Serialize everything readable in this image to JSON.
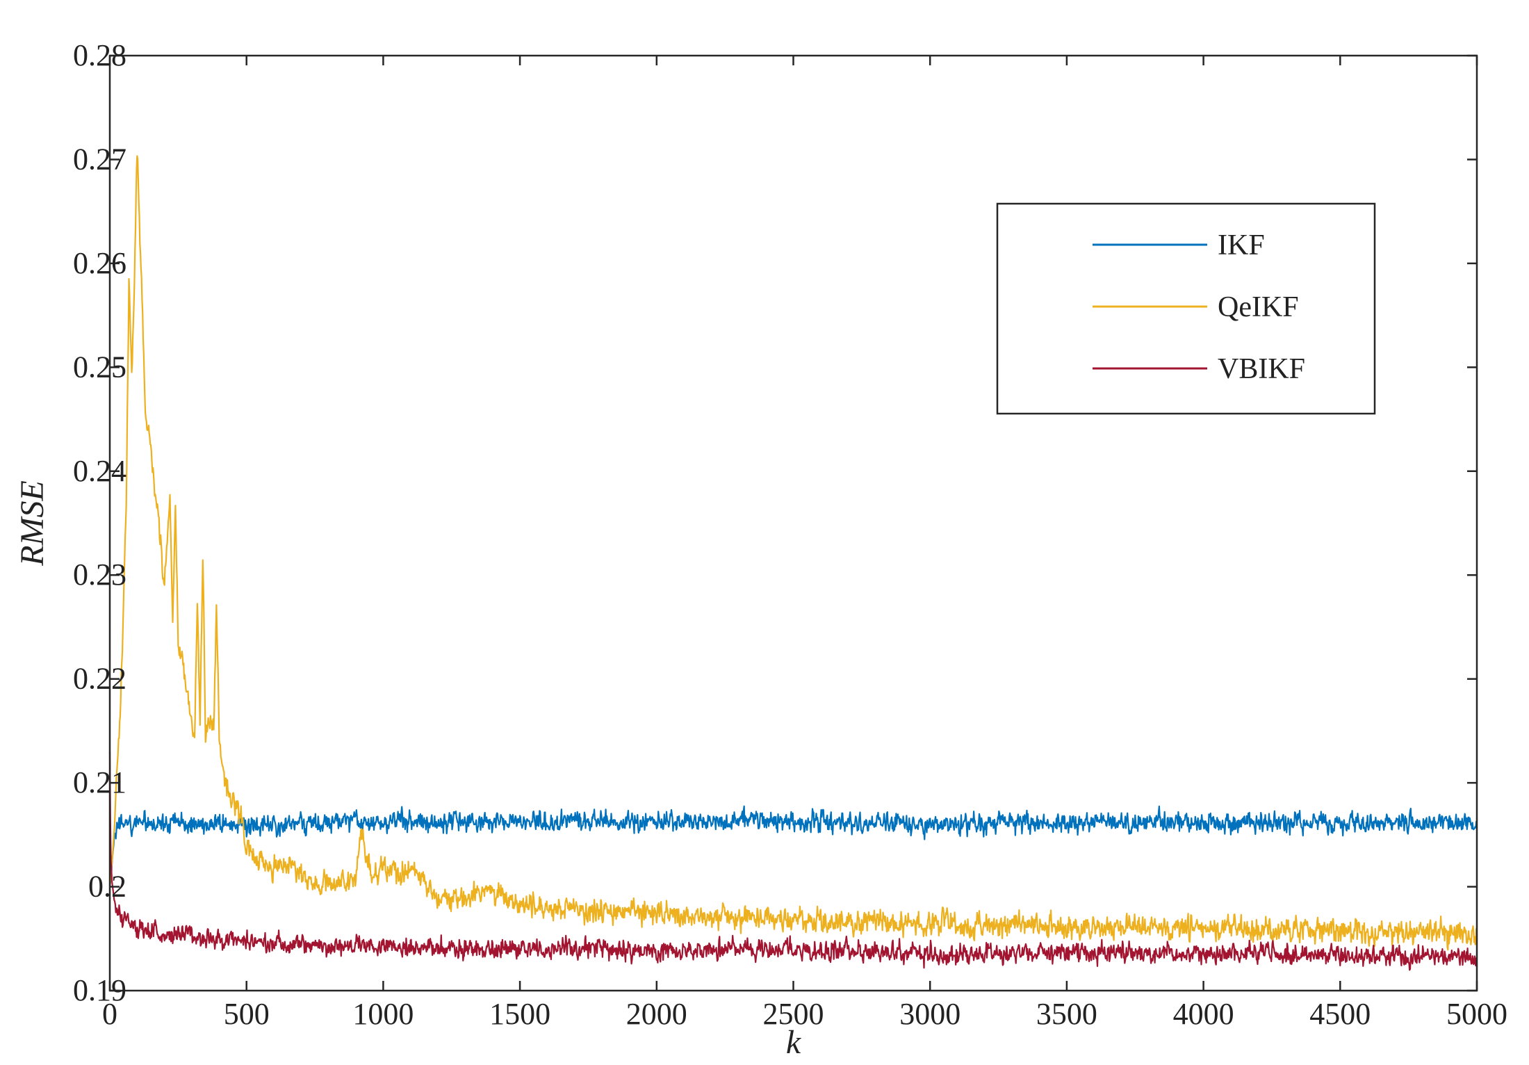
{
  "chart_data": {
    "type": "line",
    "title": "",
    "xlabel": "k",
    "ylabel": "RMSE",
    "xlim": [
      0,
      5000
    ],
    "ylim": [
      0.19,
      0.28
    ],
    "xticks": [
      0,
      500,
      1000,
      1500,
      2000,
      2500,
      3000,
      3500,
      4000,
      4500,
      5000
    ],
    "xtick_labels": [
      "0",
      "500",
      "1000",
      "1500",
      "2000",
      "2500",
      "3000",
      "3500",
      "4000",
      "4500",
      "5000"
    ],
    "yticks": [
      0.19,
      0.2,
      0.21,
      0.22,
      0.23,
      0.24,
      0.25,
      0.26,
      0.27,
      0.28
    ],
    "ytick_labels": [
      "0.19",
      "0.2",
      "0.21",
      "0.22",
      "0.23",
      "0.24",
      "0.25",
      "0.26",
      "0.27",
      "0.28"
    ],
    "grid": false,
    "legend_position": "top-right",
    "series": [
      {
        "name": "IKF",
        "color": "#0072BD",
        "noise": 0.0007,
        "x": [
          0,
          5,
          10,
          20,
          40,
          60,
          100,
          200,
          400,
          600,
          800,
          920,
          1000,
          1500,
          2000,
          2500,
          3000,
          3500,
          4000,
          4500,
          5000
        ],
        "y": [
          0.2,
          0.201,
          0.203,
          0.2055,
          0.206,
          0.206,
          0.2062,
          0.2062,
          0.206,
          0.2058,
          0.2062,
          0.2064,
          0.2062,
          0.2062,
          0.2062,
          0.2063,
          0.206,
          0.2062,
          0.2062,
          0.2062,
          0.2062
        ]
      },
      {
        "name": "QeIKF",
        "color": "#EDB120",
        "noise": 0.0008,
        "x": [
          0,
          10,
          20,
          40,
          60,
          70,
          80,
          90,
          100,
          110,
          120,
          130,
          140,
          150,
          160,
          180,
          200,
          220,
          230,
          240,
          250,
          260,
          280,
          300,
          310,
          320,
          330,
          340,
          350,
          360,
          380,
          390,
          400,
          420,
          450,
          480,
          500,
          550,
          600,
          650,
          700,
          750,
          800,
          850,
          900,
          920,
          950,
          1000,
          1050,
          1100,
          1150,
          1200,
          1250,
          1300,
          1400,
          1500,
          1600,
          1800,
          2000,
          2200,
          2500,
          2800,
          3000,
          3500,
          4000,
          4500,
          5000
        ],
        "y": [
          0.2,
          0.203,
          0.207,
          0.218,
          0.237,
          0.258,
          0.249,
          0.258,
          0.271,
          0.262,
          0.255,
          0.246,
          0.244,
          0.242,
          0.239,
          0.235,
          0.229,
          0.238,
          0.226,
          0.237,
          0.223,
          0.2225,
          0.219,
          0.2155,
          0.2155,
          0.228,
          0.2155,
          0.232,
          0.2145,
          0.2155,
          0.215,
          0.227,
          0.214,
          0.2105,
          0.2085,
          0.2065,
          0.2045,
          0.2025,
          0.2015,
          0.2022,
          0.2015,
          0.2005,
          0.2,
          0.2005,
          0.2006,
          0.206,
          0.2012,
          0.2018,
          0.201,
          0.202,
          0.2008,
          0.199,
          0.1985,
          0.199,
          0.1995,
          0.1982,
          0.1978,
          0.1976,
          0.1974,
          0.197,
          0.1968,
          0.1966,
          0.1964,
          0.1962,
          0.196,
          0.1958,
          0.1955
        ]
      },
      {
        "name": "VBIKF",
        "color": "#A2142F",
        "noise": 0.0007,
        "x": [
          0,
          3,
          8,
          15,
          30,
          60,
          100,
          200,
          300,
          500,
          700,
          900,
          1000,
          1200,
          1500,
          2000,
          2500,
          3000,
          3500,
          4000,
          4500,
          5000
        ],
        "y": [
          0.213,
          0.203,
          0.2005,
          0.199,
          0.1975,
          0.1965,
          0.196,
          0.1955,
          0.195,
          0.1948,
          0.1945,
          0.1945,
          0.1943,
          0.1942,
          0.194,
          0.1939,
          0.1939,
          0.1935,
          0.1936,
          0.1936,
          0.1935,
          0.1932
        ]
      }
    ]
  }
}
